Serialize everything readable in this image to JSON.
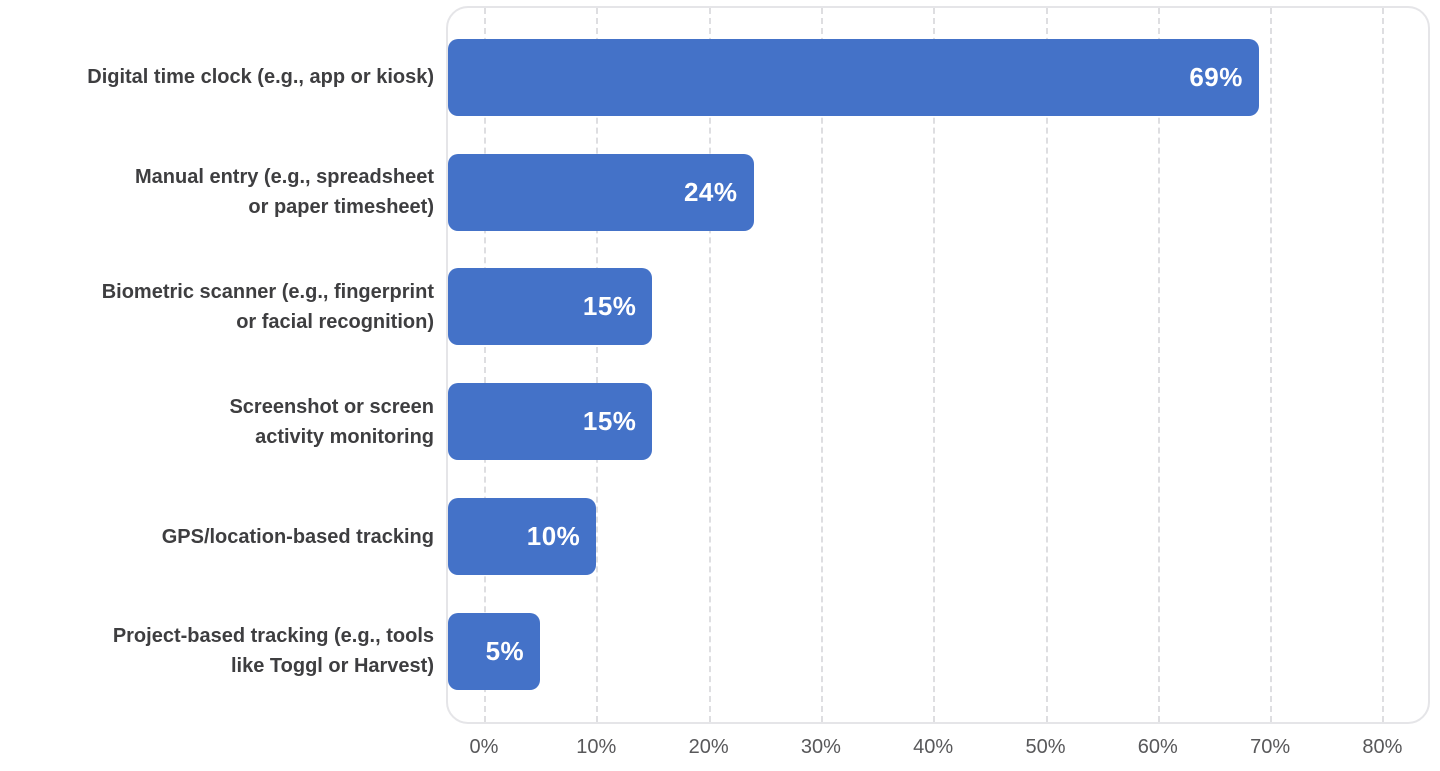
{
  "chart_data": {
    "type": "bar",
    "orientation": "horizontal",
    "title": "",
    "xlabel": "",
    "ylabel": "",
    "xlim": [
      0,
      80
    ],
    "grid": "vertical-dashed",
    "legend_position": "none",
    "bar_color": "#4472c8",
    "value_label_color": "#ffffff",
    "categories": [
      "Digital time clock (e.g., app or kiosk)",
      "Manual entry (e.g., spreadsheet\nor paper timesheet)",
      "Biometric scanner (e.g., fingerprint\nor facial recognition)",
      "Screenshot or screen\nactivity monitoring",
      "GPS/location-based tracking",
      "Project-based tracking (e.g., tools\nlike Toggl or Harvest)"
    ],
    "values": [
      69,
      24,
      15,
      15,
      10,
      5
    ],
    "value_labels": [
      "69%",
      "24%",
      "15%",
      "15%",
      "10%",
      "5%"
    ],
    "x_tick_labels": [
      "0%",
      "10%",
      "20%",
      "30%",
      "40%",
      "50%",
      "60%",
      "70%",
      "80%"
    ],
    "x_tick_values": [
      0,
      10,
      20,
      30,
      40,
      50,
      60,
      70,
      80
    ]
  }
}
